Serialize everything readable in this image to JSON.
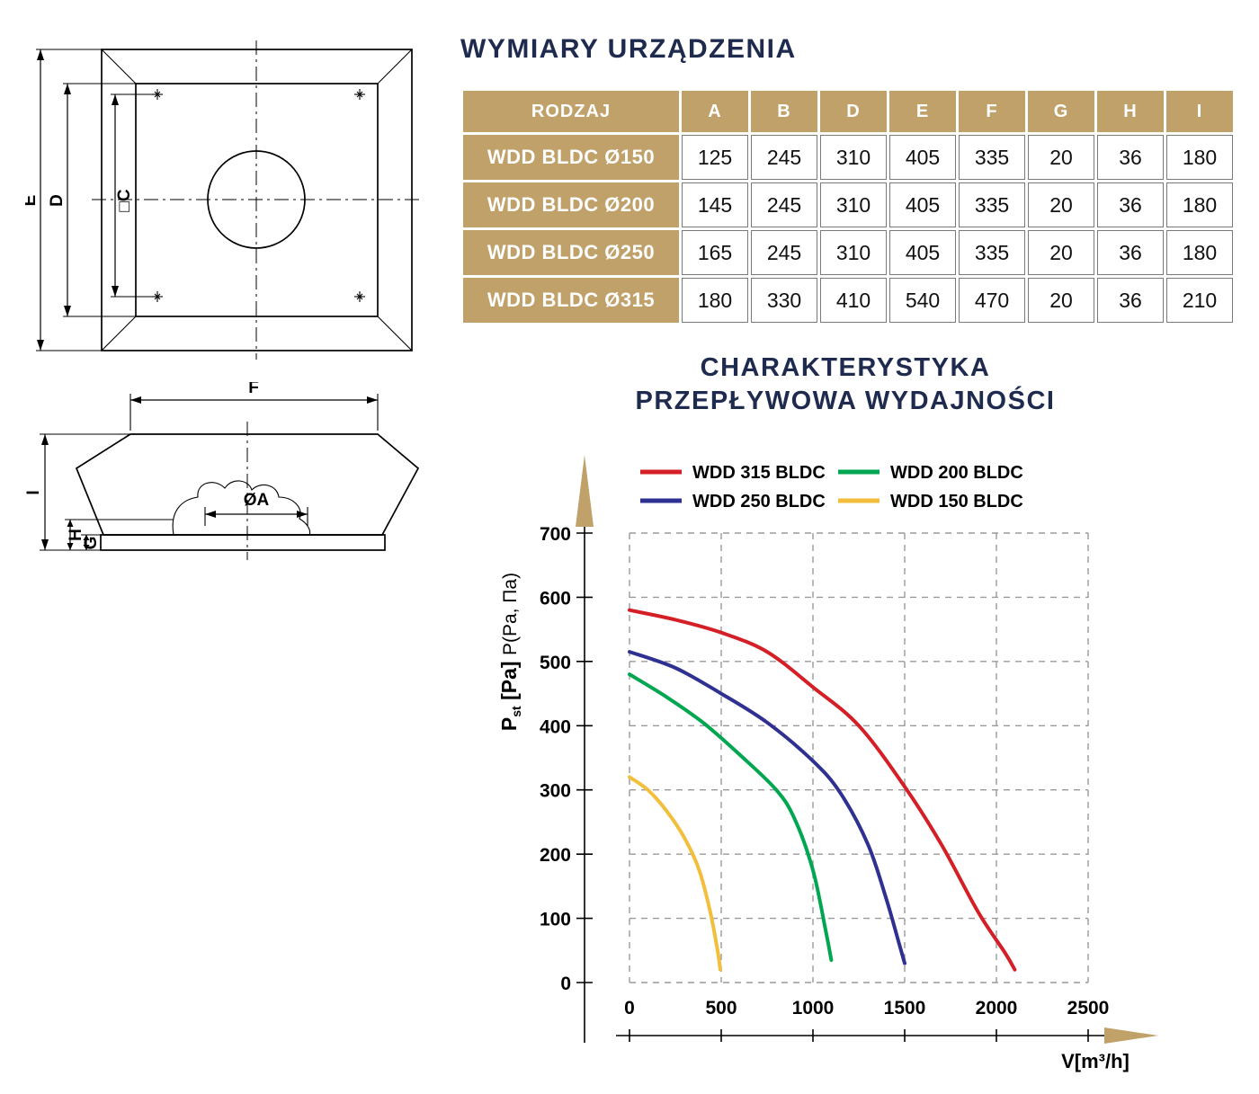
{
  "titles": {
    "dimensions": "WYMIARY URZĄDZENIA"
  },
  "colors": {
    "accent": "#C0A169",
    "title_navy": "#1E2B4E",
    "red": "#D51F26",
    "navy": "#2E3192",
    "green": "#00A650",
    "yellow": "#F2BE3C",
    "grid": "#9A9A9A"
  },
  "drawing_labels": {
    "e": "E",
    "d": "D",
    "c": "□C",
    "f": "F",
    "a": "ØA",
    "i": "I",
    "h": "H",
    "g": "G"
  },
  "dimensions_table": {
    "headers": [
      "RODZAJ",
      "A",
      "B",
      "D",
      "E",
      "F",
      "G",
      "H",
      "I"
    ],
    "rows": [
      {
        "label": "WDD BLDC Ø150",
        "values": [
          "125",
          "245",
          "310",
          "405",
          "335",
          "20",
          "36",
          "180"
        ]
      },
      {
        "label": "WDD BLDC Ø200",
        "values": [
          "145",
          "245",
          "310",
          "405",
          "335",
          "20",
          "36",
          "180"
        ]
      },
      {
        "label": "WDD BLDC Ø250",
        "values": [
          "165",
          "245",
          "310",
          "405",
          "335",
          "20",
          "36",
          "180"
        ]
      },
      {
        "label": "WDD BLDC Ø315",
        "values": [
          "180",
          "330",
          "410",
          "540",
          "470",
          "20",
          "36",
          "210"
        ]
      }
    ]
  },
  "chart_data": {
    "type": "line",
    "title_line1": "CHARAKTERYSTYKA",
    "title_line2": "PRZEPŁYWOWA WYDAJNOŚCI",
    "xlabel": "V[m³/h]",
    "ylabel_parts": {
      "p": "P",
      "sub": "st",
      "bold": " [Pa] ",
      "normal": "P(Pa, Па)"
    },
    "xlim": [
      0,
      2500
    ],
    "ylim": [
      0,
      700
    ],
    "xticks": [
      0,
      500,
      1000,
      1500,
      2000,
      2500
    ],
    "yticks": [
      0,
      100,
      200,
      300,
      400,
      500,
      600,
      700
    ],
    "grid": "dashed",
    "legend_position": "top",
    "legend_order": [
      "WDD 315 BLDC",
      "WDD 200 BLDC",
      "WDD 250 BLDC",
      "WDD 150 BLDC"
    ],
    "series": [
      {
        "name": "WDD 315 BLDC",
        "color": "#D51F26",
        "points": [
          [
            0,
            580
          ],
          [
            250,
            565
          ],
          [
            500,
            545
          ],
          [
            750,
            515
          ],
          [
            1000,
            460
          ],
          [
            1250,
            400
          ],
          [
            1500,
            305
          ],
          [
            1700,
            215
          ],
          [
            1900,
            110
          ],
          [
            2050,
            45
          ],
          [
            2100,
            20
          ]
        ]
      },
      {
        "name": "WDD 250 BLDC",
        "color": "#2E3192",
        "points": [
          [
            0,
            515
          ],
          [
            250,
            490
          ],
          [
            500,
            450
          ],
          [
            750,
            405
          ],
          [
            1000,
            345
          ],
          [
            1150,
            295
          ],
          [
            1300,
            215
          ],
          [
            1400,
            130
          ],
          [
            1470,
            60
          ],
          [
            1500,
            30
          ]
        ]
      },
      {
        "name": "WDD 200 BLDC",
        "color": "#00A650",
        "points": [
          [
            0,
            480
          ],
          [
            200,
            445
          ],
          [
            400,
            405
          ],
          [
            600,
            355
          ],
          [
            800,
            300
          ],
          [
            900,
            255
          ],
          [
            1000,
            175
          ],
          [
            1070,
            80
          ],
          [
            1100,
            35
          ]
        ]
      },
      {
        "name": "WDD 150 BLDC",
        "color": "#F2BE3C",
        "points": [
          [
            0,
            320
          ],
          [
            100,
            300
          ],
          [
            200,
            268
          ],
          [
            300,
            225
          ],
          [
            380,
            175
          ],
          [
            440,
            110
          ],
          [
            480,
            50
          ],
          [
            495,
            20
          ]
        ]
      }
    ]
  }
}
